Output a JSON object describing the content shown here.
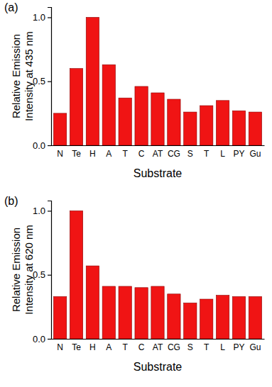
{
  "chart_data": [
    {
      "type": "bar",
      "title": "(a)",
      "x_label": "Substrate",
      "y_label": [
        "Relative Emission",
        "Intensity at 435 nm"
      ],
      "categories": [
        "N",
        "Te",
        "H",
        "A",
        "T",
        "C",
        "AT",
        "CG",
        "S",
        "T",
        "L",
        "PY",
        "Gu"
      ],
      "values": [
        0.25,
        0.6,
        1.0,
        0.63,
        0.37,
        0.46,
        0.41,
        0.36,
        0.26,
        0.31,
        0.35,
        0.27,
        0.26
      ],
      "color": "#f01414",
      "ylim": [
        0,
        1.08
      ],
      "yticks": [
        {
          "value": 0,
          "label": "0.0"
        },
        {
          "value": 0.5,
          "label": "0.5"
        },
        {
          "value": 1,
          "label": "1.0"
        }
      ],
      "grid": false
    },
    {
      "type": "bar",
      "title": "(b)",
      "x_label": "Substrate",
      "y_label": [
        "Relative Emission",
        "Intensity at 620 nm"
      ],
      "categories": [
        "N",
        "Te",
        "H",
        "A",
        "T",
        "C",
        "AT",
        "CG",
        "S",
        "T",
        "L",
        "PY",
        "Gu"
      ],
      "values": [
        0.33,
        1.0,
        0.57,
        0.41,
        0.41,
        0.4,
        0.41,
        0.35,
        0.28,
        0.31,
        0.34,
        0.33,
        0.33
      ],
      "color": "#f01414",
      "ylim": [
        0,
        1.08
      ],
      "yticks": [
        {
          "value": 0,
          "label": "0.0"
        },
        {
          "value": 0.5,
          "label": "0.5"
        },
        {
          "value": 1,
          "label": "1.0"
        }
      ],
      "grid": false
    }
  ]
}
